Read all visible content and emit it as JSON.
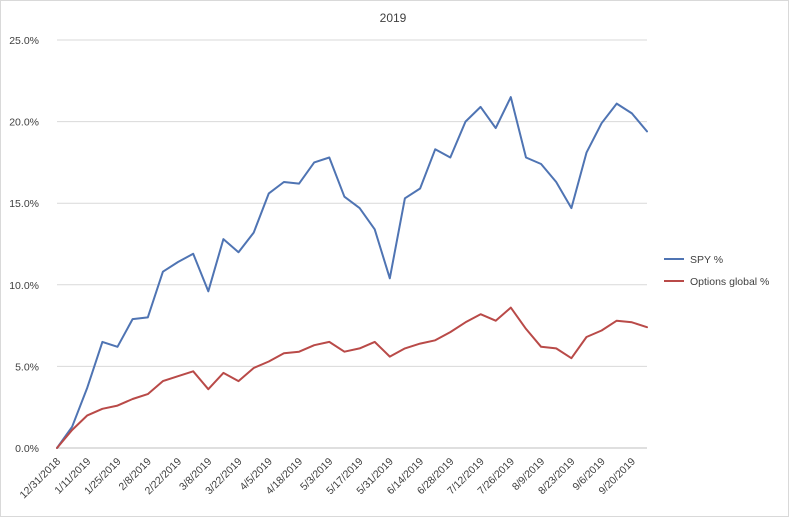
{
  "chart_data": {
    "type": "line",
    "title": "2019",
    "xlabel": "",
    "ylabel": "",
    "ylim": [
      0,
      25
    ],
    "y_tick_labels": [
      "0.0%",
      "5.0%",
      "10.0%",
      "15.0%",
      "20.0%",
      "25.0%"
    ],
    "x_tick_labels": [
      "12/31/2018",
      "1/11/2019",
      "1/25/2019",
      "2/8/2019",
      "2/22/2019",
      "3/8/2019",
      "3/22/2019",
      "4/5/2019",
      "4/18/2019",
      "5/3/2019",
      "5/17/2019",
      "5/31/2019",
      "6/14/2019",
      "6/28/2019",
      "7/12/2019",
      "7/26/2019",
      "8/9/2019",
      "8/23/2019",
      "9/6/2019",
      "9/20/2019"
    ],
    "grid": "horizontal",
    "legend_position": "right",
    "series": [
      {
        "name": "SPY %",
        "color": "#4f74b3",
        "values": [
          0.0,
          1.3,
          3.7,
          6.5,
          6.2,
          7.9,
          8.0,
          10.8,
          11.4,
          11.9,
          9.6,
          12.8,
          12.0,
          13.2,
          15.6,
          16.3,
          16.2,
          17.5,
          17.8,
          15.4,
          14.7,
          13.4,
          10.4,
          15.3,
          15.9,
          18.3,
          17.8,
          20.0,
          20.9,
          19.6,
          21.5,
          17.8,
          17.4,
          16.3,
          14.7,
          18.1,
          19.9,
          21.1,
          20.5,
          19.4
        ]
      },
      {
        "name": "Options global %",
        "color": "#b94a48",
        "values": [
          0.0,
          1.1,
          2.0,
          2.4,
          2.6,
          3.0,
          3.3,
          4.1,
          4.4,
          4.7,
          3.6,
          4.6,
          4.1,
          4.9,
          5.3,
          5.8,
          5.9,
          6.3,
          6.5,
          5.9,
          6.1,
          6.5,
          5.6,
          6.1,
          6.4,
          6.6,
          7.1,
          7.7,
          8.2,
          7.8,
          8.6,
          7.3,
          6.2,
          6.1,
          5.5,
          6.8,
          7.2,
          7.8,
          7.7,
          7.4
        ]
      }
    ]
  }
}
